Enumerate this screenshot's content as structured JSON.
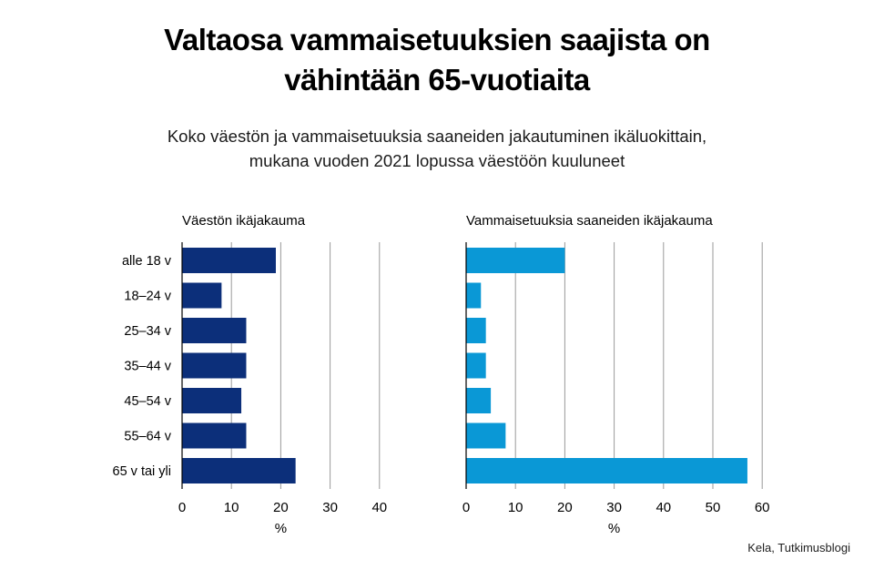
{
  "header": {
    "title_line1": "Valtaosa vammaisetuuksien saajista on",
    "title_line2": "vähintään 65-vuotiaita",
    "subtitle_line1": "Koko väestön ja vammaisetuuksia saaneiden jakautuminen ikäluokittain,",
    "subtitle_line2": "mukana vuoden 2021 lopussa väestöön kuuluneet"
  },
  "source": "Kela, Tutkimusblogi",
  "colors": {
    "left_bar": "#0c2f7a",
    "right_bar": "#0a98d6",
    "grid": "#9a9a9a",
    "axis": "#000000"
  },
  "chart_data": [
    {
      "type": "bar",
      "orientation": "horizontal",
      "title": "Väestön ikäjakauma",
      "categories": [
        "alle 18 v",
        "18–24 v",
        "25–34 v",
        "35–44 v",
        "45–54 v",
        "55–64 v",
        "65 v tai yli"
      ],
      "values": [
        19,
        8,
        13,
        13,
        12,
        13,
        23
      ],
      "xlabel": "%",
      "xlim": [
        0,
        40
      ],
      "xticks": [
        0,
        10,
        20,
        30,
        40
      ],
      "grid": true
    },
    {
      "type": "bar",
      "orientation": "horizontal",
      "title": "Vammaisetuuksia saaneiden ikäjakauma",
      "categories": [
        "alle 18 v",
        "18–24 v",
        "25–34 v",
        "35–44 v",
        "45–54 v",
        "55–64 v",
        "65 v tai yli"
      ],
      "values": [
        20,
        3,
        4,
        4,
        5,
        8,
        57
      ],
      "xlabel": "%",
      "xlim": [
        0,
        60
      ],
      "xticks": [
        0,
        10,
        20,
        30,
        40,
        50,
        60
      ],
      "grid": true
    }
  ]
}
